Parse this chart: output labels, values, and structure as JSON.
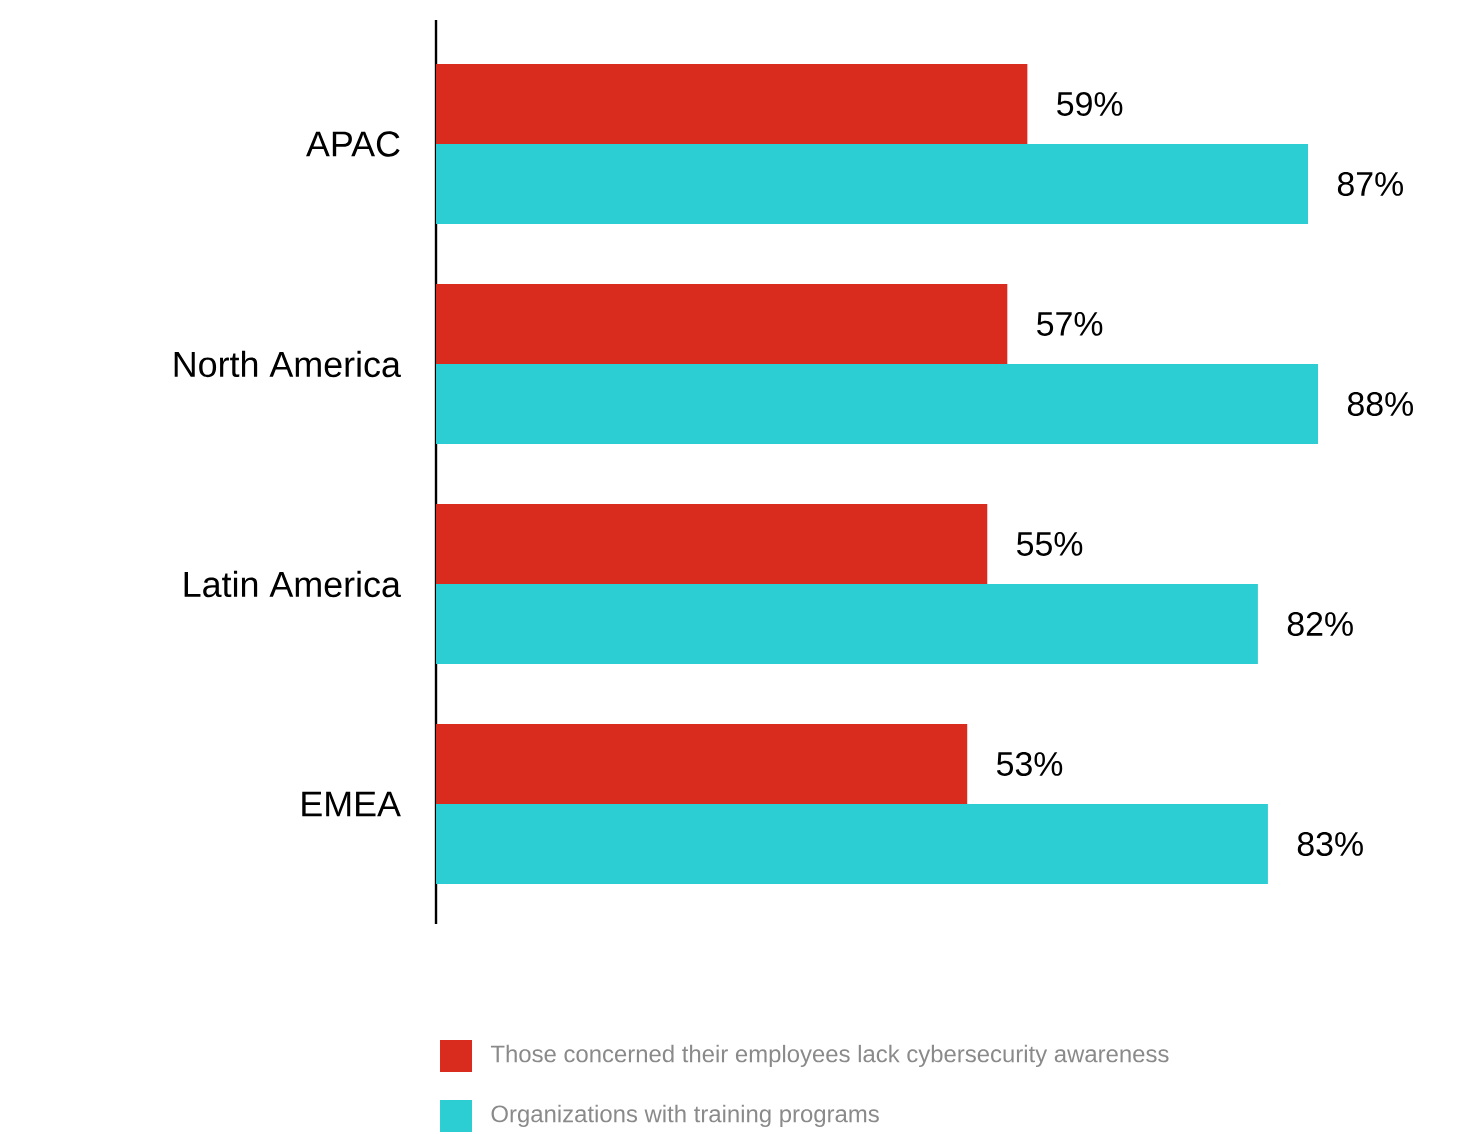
{
  "chart_data": {
    "type": "bar",
    "orientation": "horizontal",
    "categories": [
      "APAC",
      "North America",
      "Latin America",
      "EMEA"
    ],
    "series": [
      {
        "name": "Those concerned their employees lack cybersecurity awareness",
        "color": "#d92b1e",
        "values": [
          59,
          57,
          55,
          53
        ],
        "value_labels": [
          "59%",
          "57%",
          "55%",
          "53%"
        ]
      },
      {
        "name": "Organizations with training programs",
        "color": "#2dcdd4",
        "values": [
          87,
          88,
          82,
          83
        ],
        "value_labels": [
          "87%",
          "88%",
          "82%",
          "83%"
        ]
      }
    ],
    "legend": "bottom"
  }
}
